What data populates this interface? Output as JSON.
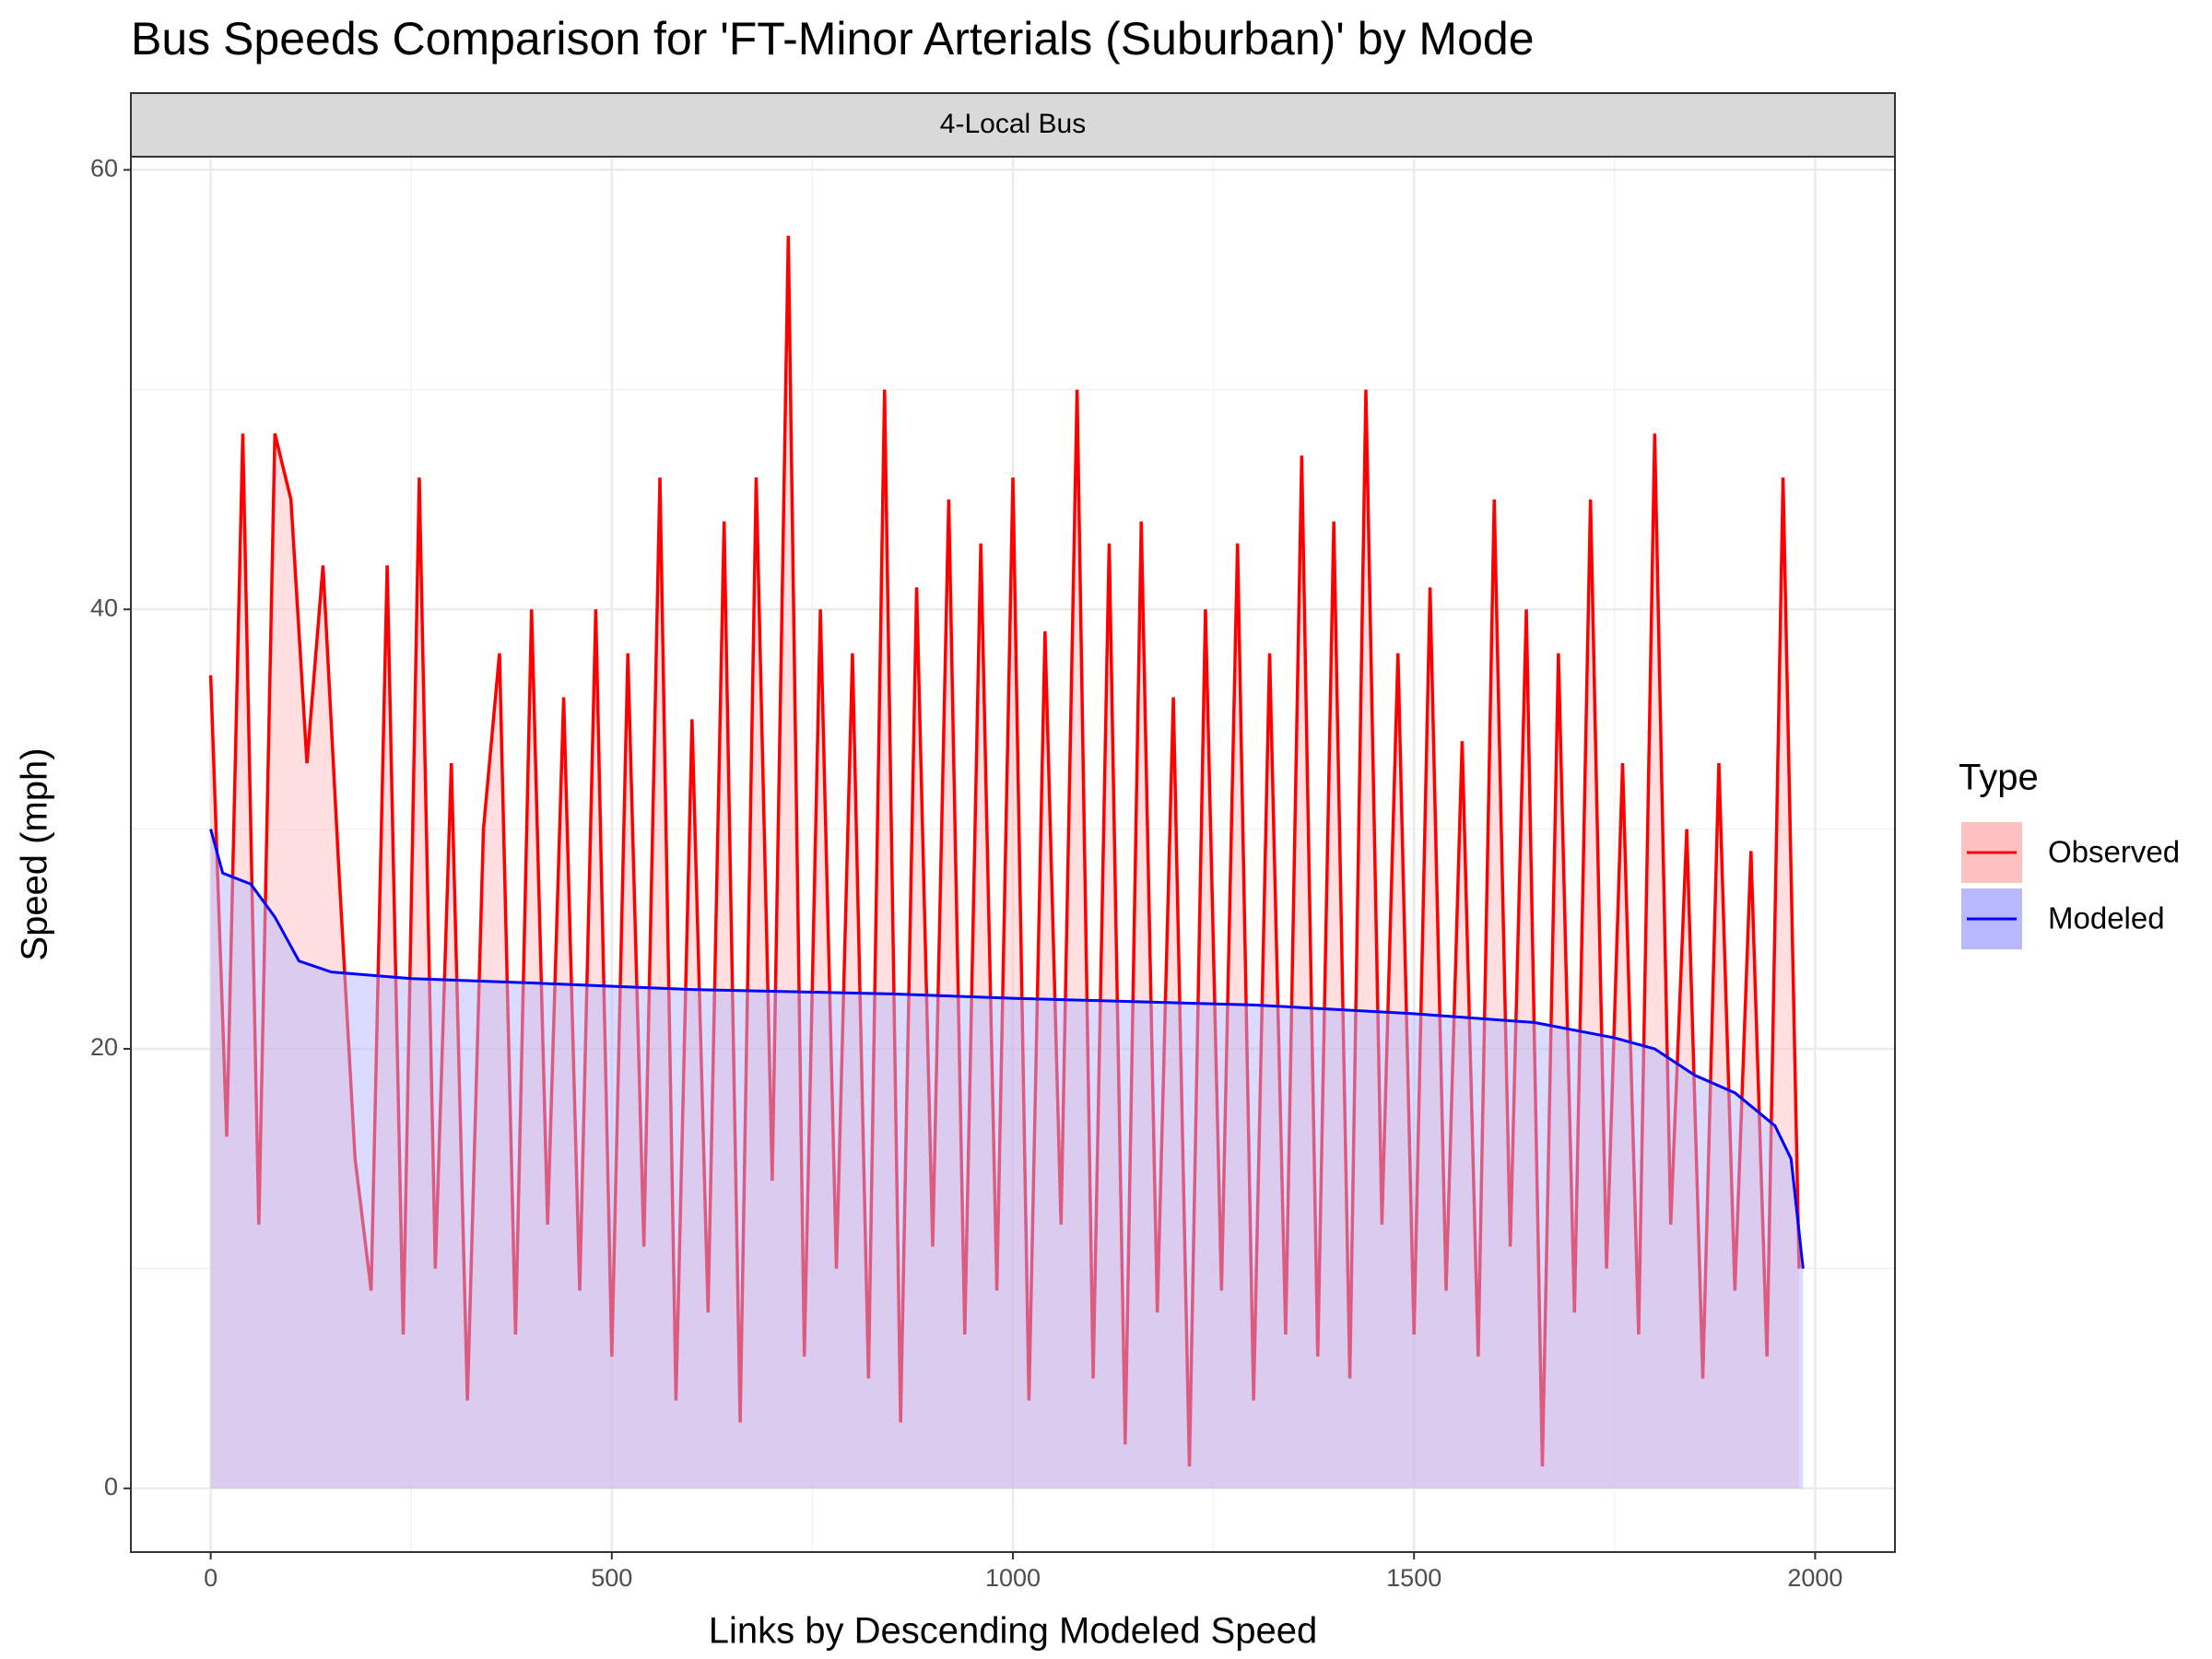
{
  "chart_data": {
    "type": "line",
    "title": "Bus Speeds Comparison for 'FT-Minor Arterials (Suburban)' by Mode",
    "facet": "4-Local Bus",
    "x_label": "Links by Descending Modeled Speed",
    "y_label": "Speed (mph)",
    "legend_title": "Type",
    "legend_position": "right",
    "grid": true,
    "xlim": [
      -99.5,
      2099.5
    ],
    "xticks": [
      0,
      500,
      1000,
      1500,
      2000
    ],
    "ylim": [
      -2.9,
      60.6
    ],
    "yticks": [
      0,
      20,
      40,
      60
    ],
    "series": [
      {
        "name": "Observed",
        "color": "#ff0000",
        "fill": "#ffc0c0",
        "x": [
          0,
          20,
          40,
          60,
          80,
          100,
          120,
          140,
          160,
          180,
          200,
          220,
          240,
          260,
          280,
          300,
          320,
          340,
          360,
          380,
          400,
          420,
          440,
          460,
          480,
          500,
          520,
          540,
          560,
          580,
          600,
          620,
          640,
          660,
          680,
          700,
          720,
          740,
          760,
          780,
          800,
          820,
          840,
          860,
          880,
          900,
          920,
          940,
          960,
          980,
          1000,
          1020,
          1040,
          1060,
          1080,
          1100,
          1120,
          1140,
          1160,
          1180,
          1200,
          1220,
          1240,
          1260,
          1280,
          1300,
          1320,
          1340,
          1360,
          1380,
          1400,
          1420,
          1440,
          1460,
          1480,
          1500,
          1520,
          1540,
          1560,
          1580,
          1600,
          1620,
          1640,
          1660,
          1680,
          1700,
          1720,
          1740,
          1760,
          1780,
          1800,
          1820,
          1840,
          1860,
          1880,
          1900,
          1920,
          1940,
          1960,
          1980
        ],
        "values": [
          37,
          16,
          48,
          12,
          48,
          45,
          33,
          42,
          28,
          15,
          9,
          42,
          7,
          46,
          10,
          33,
          4,
          30,
          38,
          7,
          40,
          12,
          36,
          9,
          40,
          6,
          38,
          11,
          46,
          4,
          35,
          8,
          44,
          3,
          46,
          14,
          57,
          6,
          40,
          10,
          38,
          5,
          50,
          3,
          41,
          11,
          45,
          7,
          43,
          9,
          46,
          4,
          39,
          12,
          50,
          5,
          43,
          2,
          44,
          8,
          36,
          1,
          40,
          9,
          43,
          4,
          38,
          7,
          47,
          6,
          44,
          5,
          50,
          12,
          38,
          7,
          41,
          9,
          34,
          6,
          45,
          11,
          40,
          1,
          38,
          8,
          45,
          10,
          33,
          7,
          48,
          12,
          30,
          5,
          33,
          9,
          29,
          6,
          46,
          10
        ]
      },
      {
        "name": "Modeled",
        "color": "#0000ff",
        "fill": "#b8b8ff",
        "x": [
          0,
          15,
          50,
          80,
          110,
          150,
          250,
          400,
          600,
          850,
          1000,
          1100,
          1300,
          1500,
          1650,
          1750,
          1800,
          1850,
          1900,
          1950,
          1970,
          1985
        ],
        "values": [
          30,
          28,
          27.5,
          26,
          24,
          23.5,
          23.2,
          23,
          22.7,
          22.5,
          22.3,
          22.2,
          22,
          21.6,
          21.2,
          20.5,
          20,
          18.8,
          18,
          16.5,
          15,
          10
        ]
      }
    ]
  }
}
